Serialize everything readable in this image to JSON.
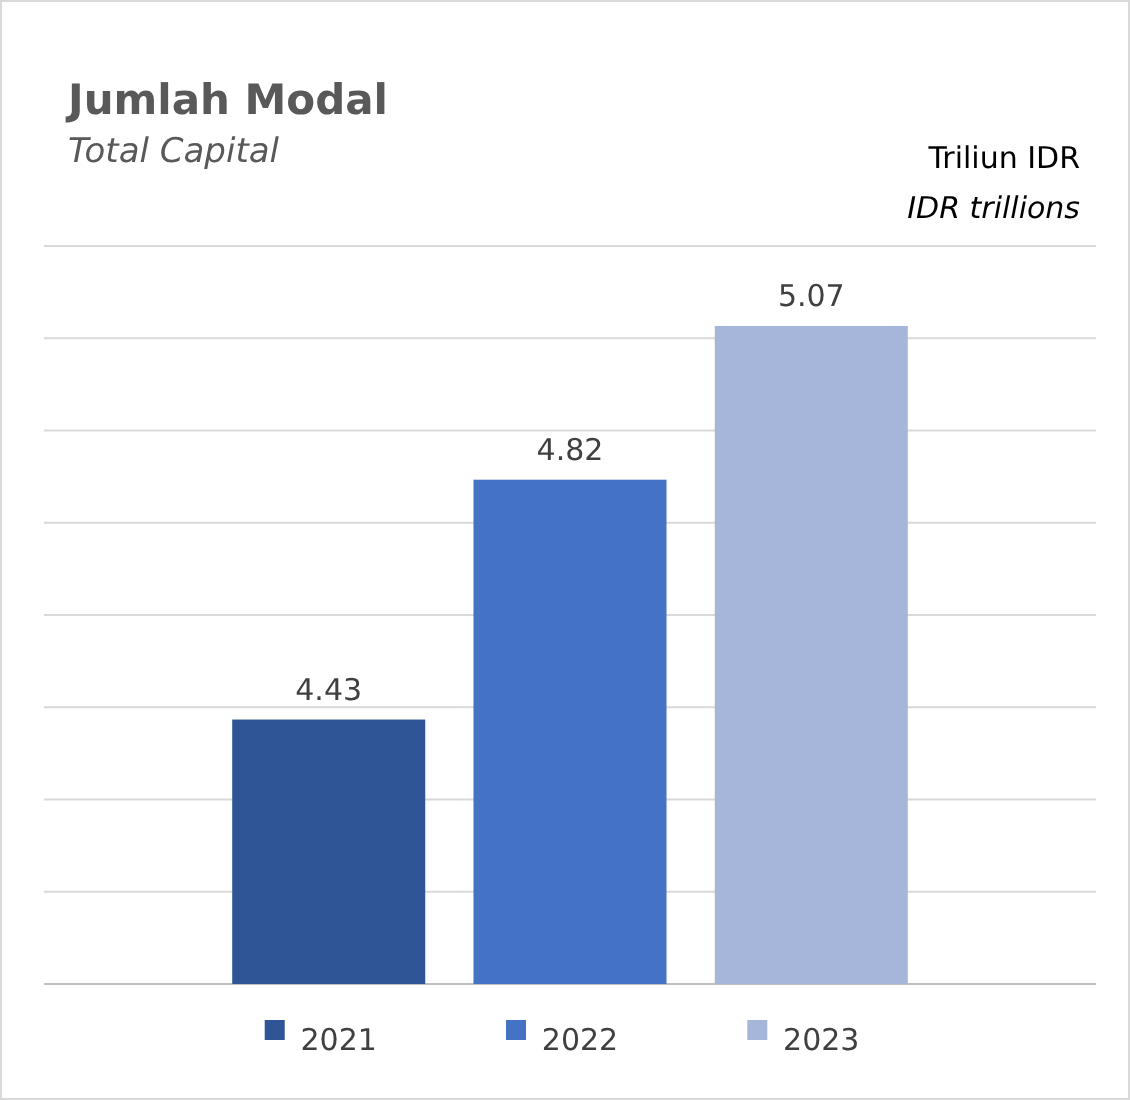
{
  "chart_data": {
    "type": "bar",
    "title": "Jumlah Modal",
    "subtitle": "Total Capital",
    "ylabel": "Triliun IDR",
    "annotations": [
      "IDR trillions"
    ],
    "categories": [
      "2021",
      "2022",
      "2023"
    ],
    "values": [
      4.43,
      4.82,
      5.07
    ],
    "colors": [
      "#2f5597",
      "#4472c4",
      "#a6b5da"
    ],
    "ylim": [
      4.0,
      5.2
    ],
    "yticks": [
      {
        "value": 4.0,
        "label": null
      },
      {
        "value": 4.15,
        "label": null
      },
      {
        "value": 4.3,
        "label": null
      },
      {
        "value": 4.45,
        "label": null
      },
      {
        "value": 4.6,
        "label": null
      },
      {
        "value": 4.75,
        "label": null
      },
      {
        "value": 4.9,
        "label": null
      },
      {
        "value": 5.05,
        "label": null
      },
      {
        "value": 5.2,
        "label": null
      }
    ],
    "grid": "y",
    "tick_labels": "x",
    "data_labels": true
  }
}
